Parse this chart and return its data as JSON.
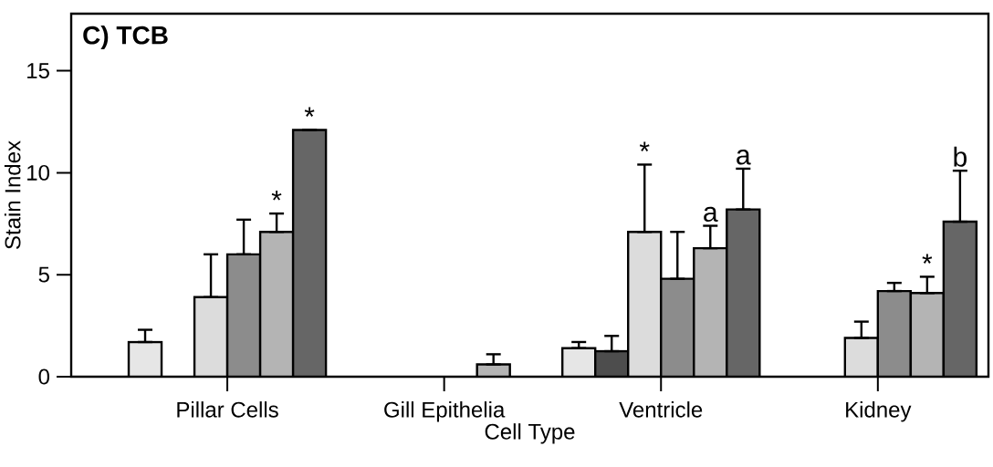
{
  "chart_data": {
    "type": "bar",
    "title": "C)  TCB",
    "xlabel": "Cell Type",
    "ylabel": "Stain Index",
    "categories": [
      "Pillar Cells",
      "Gill Epithelia",
      "Ventricle",
      "Kidney"
    ],
    "series": [
      {
        "color": "#e6e6e6",
        "values": [
          1.7,
          null,
          1.4,
          null
        ],
        "errors": [
          [
            1.7,
            2.3
          ],
          null,
          [
            1.4,
            1.7
          ],
          null
        ]
      },
      {
        "color": "#4d4d4d",
        "values": [
          null,
          null,
          1.25,
          null
        ],
        "errors": [
          null,
          null,
          [
            1.25,
            2.0
          ],
          null
        ]
      },
      {
        "color": "#dcdcdc",
        "values": [
          3.9,
          null,
          7.1,
          1.9
        ],
        "errors": [
          [
            3.9,
            6.0
          ],
          null,
          [
            7.1,
            10.4
          ],
          [
            1.9,
            2.7
          ]
        ],
        "value_labels": [
          null,
          null,
          "*",
          null
        ]
      },
      {
        "color": "#8c8c8c",
        "values": [
          6.0,
          null,
          4.8,
          4.2
        ],
        "errors": [
          [
            6.0,
            7.7
          ],
          null,
          [
            4.8,
            7.1
          ],
          [
            4.2,
            4.6
          ]
        ]
      },
      {
        "color": "#b4b4b4",
        "values": [
          7.1,
          0.6,
          6.3,
          4.1
        ],
        "errors": [
          [
            7.1,
            8.0
          ],
          [
            0.6,
            1.1
          ],
          [
            6.3,
            7.4
          ],
          [
            4.1,
            4.9
          ]
        ],
        "value_labels": [
          "*",
          null,
          "a",
          "*"
        ]
      },
      {
        "color": "#666666",
        "values": [
          12.1,
          null,
          8.2,
          7.6
        ],
        "errors": [
          null,
          null,
          [
            8.2,
            10.2
          ],
          [
            7.6,
            10.1
          ]
        ],
        "value_labels": [
          "*",
          null,
          "a",
          "b"
        ]
      }
    ],
    "ylim": [
      0,
      17.8
    ],
    "yticks": [
      0,
      5,
      10,
      15
    ]
  }
}
